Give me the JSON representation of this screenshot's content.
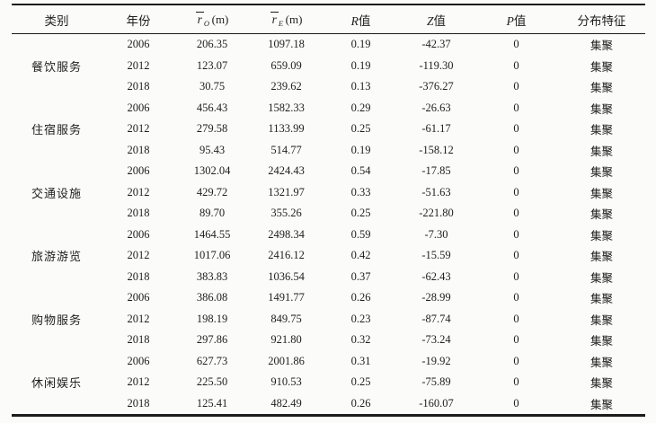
{
  "table": {
    "headers": {
      "category": "类别",
      "year": "年份",
      "ro": {
        "base": "r",
        "sub": "O",
        "unit": "(m)"
      },
      "re": {
        "base": "r",
        "sub": "E",
        "unit": "(m)"
      },
      "r_value": {
        "symbol": "R",
        "label": "值"
      },
      "z_value": {
        "symbol": "Z",
        "label": "值"
      },
      "p_value": {
        "symbol": "P",
        "label": "值"
      },
      "feature": "分布特征"
    },
    "groups": [
      {
        "category": "餐饮服务",
        "rows": [
          {
            "year": "2006",
            "ro": "206.35",
            "re": "1097.18",
            "r": "0.19",
            "z": "-42.37",
            "p": "0",
            "feature": "集聚"
          },
          {
            "year": "2012",
            "ro": "123.07",
            "re": "659.09",
            "r": "0.19",
            "z": "-119.30",
            "p": "0",
            "feature": "集聚"
          },
          {
            "year": "2018",
            "ro": "30.75",
            "re": "239.62",
            "r": "0.13",
            "z": "-376.27",
            "p": "0",
            "feature": "集聚"
          }
        ]
      },
      {
        "category": "住宿服务",
        "rows": [
          {
            "year": "2006",
            "ro": "456.43",
            "re": "1582.33",
            "r": "0.29",
            "z": "-26.63",
            "p": "0",
            "feature": "集聚"
          },
          {
            "year": "2012",
            "ro": "279.58",
            "re": "1133.99",
            "r": "0.25",
            "z": "-61.17",
            "p": "0",
            "feature": "集聚"
          },
          {
            "year": "2018",
            "ro": "95.43",
            "re": "514.77",
            "r": "0.19",
            "z": "-158.12",
            "p": "0",
            "feature": "集聚"
          }
        ]
      },
      {
        "category": "交通设施",
        "rows": [
          {
            "year": "2006",
            "ro": "1302.04",
            "re": "2424.43",
            "r": "0.54",
            "z": "-17.85",
            "p": "0",
            "feature": "集聚"
          },
          {
            "year": "2012",
            "ro": "429.72",
            "re": "1321.97",
            "r": "0.33",
            "z": "-51.63",
            "p": "0",
            "feature": "集聚"
          },
          {
            "year": "2018",
            "ro": "89.70",
            "re": "355.26",
            "r": "0.25",
            "z": "-221.80",
            "p": "0",
            "feature": "集聚"
          }
        ]
      },
      {
        "category": "旅游游览",
        "rows": [
          {
            "year": "2006",
            "ro": "1464.55",
            "re": "2498.34",
            "r": "0.59",
            "z": "-7.30",
            "p": "0",
            "feature": "集聚"
          },
          {
            "year": "2012",
            "ro": "1017.06",
            "re": "2416.12",
            "r": "0.42",
            "z": "-15.59",
            "p": "0",
            "feature": "集聚"
          },
          {
            "year": "2018",
            "ro": "383.83",
            "re": "1036.54",
            "r": "0.37",
            "z": "-62.43",
            "p": "0",
            "feature": "集聚"
          }
        ]
      },
      {
        "category": "购物服务",
        "rows": [
          {
            "year": "2006",
            "ro": "386.08",
            "re": "1491.77",
            "r": "0.26",
            "z": "-28.99",
            "p": "0",
            "feature": "集聚"
          },
          {
            "year": "2012",
            "ro": "198.19",
            "re": "849.75",
            "r": "0.23",
            "z": "-87.74",
            "p": "0",
            "feature": "集聚"
          },
          {
            "year": "2018",
            "ro": "297.86",
            "re": "921.80",
            "r": "0.32",
            "z": "-73.24",
            "p": "0",
            "feature": "集聚"
          }
        ]
      },
      {
        "category": "休闲娱乐",
        "rows": [
          {
            "year": "2006",
            "ro": "627.73",
            "re": "2001.86",
            "r": "0.31",
            "z": "-19.92",
            "p": "0",
            "feature": "集聚"
          },
          {
            "year": "2012",
            "ro": "225.50",
            "re": "910.53",
            "r": "0.25",
            "z": "-75.89",
            "p": "0",
            "feature": "集聚"
          },
          {
            "year": "2018",
            "ro": "125.41",
            "re": "482.49",
            "r": "0.26",
            "z": "-160.07",
            "p": "0",
            "feature": "集聚"
          }
        ]
      }
    ]
  }
}
